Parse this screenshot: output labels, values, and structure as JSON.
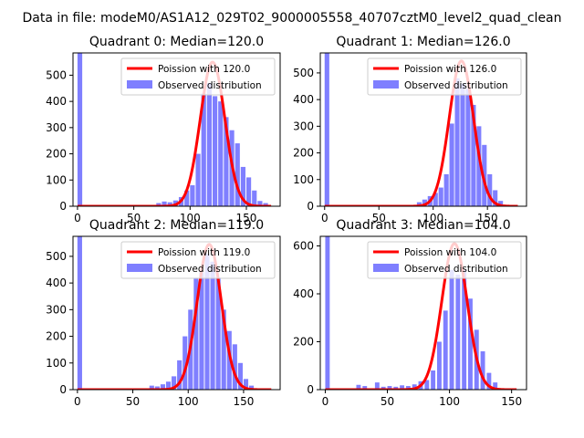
{
  "figure": {
    "suptitle": "Data in file: modeM0/AS1A12_029T02_9000005558_40707cztM0_level2_quad_clean"
  },
  "colors": {
    "histogram": "#7f7fff",
    "poisson": "#ff0000",
    "axis": "#000000"
  },
  "legend": {
    "poisson_prefix": "Poission with ",
    "observed": "Observed distribution"
  },
  "chart_data": [
    {
      "type": "bar",
      "title": "Quadrant 0: Median=120.0",
      "median": 120.0,
      "poisson_label": "120.0",
      "xlim": [
        -4,
        180
      ],
      "ylim": [
        0,
        585
      ],
      "xticks": [
        0,
        50,
        100,
        150
      ],
      "yticks": [
        0,
        100,
        200,
        300,
        400,
        500
      ],
      "bin_width": 4.2,
      "bins": [
        [
          0,
          585
        ],
        [
          70,
          12
        ],
        [
          75,
          18
        ],
        [
          80,
          15
        ],
        [
          85,
          22
        ],
        [
          90,
          35
        ],
        [
          95,
          60
        ],
        [
          100,
          80
        ],
        [
          105,
          200
        ],
        [
          110,
          430
        ],
        [
          115,
          470
        ],
        [
          120,
          420
        ],
        [
          125,
          400
        ],
        [
          130,
          340
        ],
        [
          135,
          290
        ],
        [
          140,
          240
        ],
        [
          145,
          150
        ],
        [
          150,
          110
        ],
        [
          155,
          60
        ],
        [
          160,
          20
        ],
        [
          165,
          12
        ]
      ],
      "poisson_peak": 550
    },
    {
      "type": "bar",
      "title": "Quadrant 1: Median=126.0",
      "median": 126.0,
      "poisson_label": "126.0",
      "xlim": [
        -4,
        186
      ],
      "ylim": [
        0,
        575
      ],
      "xticks": [
        0,
        50,
        100,
        150
      ],
      "yticks": [
        0,
        100,
        200,
        300,
        400,
        500
      ],
      "bin_width": 4.3,
      "bins": [
        [
          0,
          575
        ],
        [
          85,
          15
        ],
        [
          90,
          25
        ],
        [
          95,
          38
        ],
        [
          100,
          50
        ],
        [
          105,
          70
        ],
        [
          110,
          120
        ],
        [
          115,
          310
        ],
        [
          120,
          480
        ],
        [
          125,
          460
        ],
        [
          130,
          440
        ],
        [
          135,
          380
        ],
        [
          140,
          300
        ],
        [
          145,
          230
        ],
        [
          150,
          120
        ],
        [
          155,
          60
        ],
        [
          160,
          20
        ]
      ],
      "poisson_peak": 545
    },
    {
      "type": "bar",
      "title": "Quadrant 2: Median=119.0",
      "median": 119.0,
      "poisson_label": "119.0",
      "xlim": [
        -4,
        183
      ],
      "ylim": [
        0,
        575
      ],
      "xticks": [
        0,
        50,
        100,
        150
      ],
      "yticks": [
        0,
        100,
        200,
        300,
        400,
        500
      ],
      "bin_width": 4.2,
      "bins": [
        [
          0,
          575
        ],
        [
          65,
          15
        ],
        [
          70,
          12
        ],
        [
          75,
          20
        ],
        [
          80,
          30
        ],
        [
          85,
          50
        ],
        [
          90,
          110
        ],
        [
          95,
          200
        ],
        [
          100,
          300
        ],
        [
          105,
          420
        ],
        [
          110,
          440
        ],
        [
          115,
          510
        ],
        [
          120,
          480
        ],
        [
          125,
          420
        ],
        [
          130,
          300
        ],
        [
          135,
          220
        ],
        [
          140,
          170
        ],
        [
          145,
          100
        ],
        [
          150,
          40
        ],
        [
          155,
          15
        ]
      ],
      "poisson_peak": 545
    },
    {
      "type": "bar",
      "title": "Quadrant 3: Median=104.0",
      "median": 104.0,
      "poisson_label": "104.0",
      "xlim": [
        -4,
        162
      ],
      "ylim": [
        0,
        640
      ],
      "xticks": [
        0,
        50,
        100,
        150
      ],
      "yticks": [
        0,
        200,
        400,
        600
      ],
      "bin_width": 3.6,
      "bins": [
        [
          0,
          640
        ],
        [
          25,
          20
        ],
        [
          30,
          15
        ],
        [
          40,
          30
        ],
        [
          45,
          12
        ],
        [
          50,
          15
        ],
        [
          55,
          12
        ],
        [
          60,
          18
        ],
        [
          65,
          15
        ],
        [
          70,
          22
        ],
        [
          75,
          35
        ],
        [
          80,
          40
        ],
        [
          85,
          80
        ],
        [
          90,
          200
        ],
        [
          95,
          330
        ],
        [
          100,
          500
        ],
        [
          105,
          480
        ],
        [
          110,
          500
        ],
        [
          115,
          380
        ],
        [
          120,
          250
        ],
        [
          125,
          160
        ],
        [
          130,
          70
        ],
        [
          135,
          30
        ]
      ],
      "poisson_peak": 610
    }
  ]
}
